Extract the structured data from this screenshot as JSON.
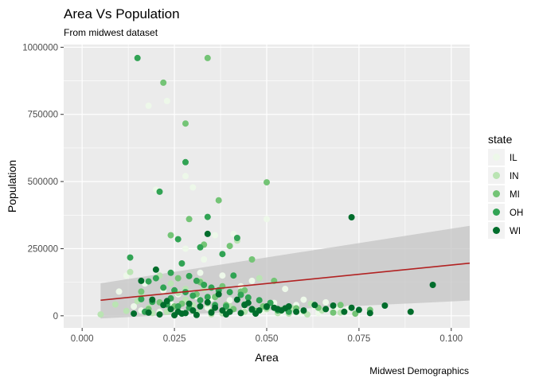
{
  "chart_data": {
    "type": "scatter",
    "title": "Area Vs Population",
    "subtitle": "From midwest dataset",
    "xlabel": "Area",
    "ylabel": "Population",
    "caption": "Midwest Demographics",
    "xlim": [
      -0.005,
      0.105
    ],
    "ylim": [
      -45000,
      1010000
    ],
    "x_ticks": [
      0.0,
      0.025,
      0.05,
      0.075,
      0.1
    ],
    "x_tick_labels": [
      "0.000",
      "0.025",
      "0.050",
      "0.075",
      "0.100"
    ],
    "y_ticks": [
      0,
      250000,
      500000,
      750000,
      1000000
    ],
    "y_tick_labels": [
      "0",
      "250000",
      "500000",
      "750000",
      "1000000"
    ],
    "grid": true,
    "legend": {
      "title": "state",
      "position": "right",
      "entries": [
        "IL",
        "IN",
        "MI",
        "OH",
        "WI"
      ]
    },
    "colors": {
      "IL": "#edf8e9",
      "IN": "#bae4b3",
      "MI": "#74c476",
      "OH": "#31a354",
      "WI": "#006d2c",
      "panel": "#ebebeb",
      "grid_major": "#ffffff",
      "smooth_line": "#b22222",
      "smooth_band": "#c4c4c4"
    },
    "smooth": {
      "method": "lm",
      "x": [
        0.005,
        0.105
      ],
      "y": [
        58000,
        196000
      ],
      "ci_lower": [
        -10000,
        57000
      ],
      "ci_upper": [
        121000,
        335000
      ]
    },
    "series": [
      {
        "name": "IL",
        "points": [
          [
            0.018,
            782000
          ],
          [
            0.023,
            800000
          ],
          [
            0.028,
            520000
          ],
          [
            0.03,
            478000
          ],
          [
            0.02,
            470000
          ],
          [
            0.036,
            300000
          ],
          [
            0.041,
            305000
          ],
          [
            0.05,
            360000
          ],
          [
            0.012,
            150000
          ],
          [
            0.017,
            120000
          ],
          [
            0.022,
            95000
          ],
          [
            0.026,
            80000
          ],
          [
            0.031,
            72000
          ],
          [
            0.035,
            64000
          ],
          [
            0.04,
            58000
          ],
          [
            0.045,
            52000
          ],
          [
            0.052,
            48000
          ],
          [
            0.058,
            40000
          ],
          [
            0.063,
            35000
          ],
          [
            0.069,
            30000
          ],
          [
            0.072,
            26000
          ],
          [
            0.028,
            250000
          ],
          [
            0.033,
            210000
          ],
          [
            0.019,
            60000
          ],
          [
            0.024,
            45000
          ],
          [
            0.029,
            38000
          ],
          [
            0.034,
            30000
          ],
          [
            0.039,
            25000
          ],
          [
            0.044,
            20000
          ],
          [
            0.049,
            17000
          ],
          [
            0.054,
            14000
          ],
          [
            0.059,
            12000
          ],
          [
            0.064,
            10000
          ],
          [
            0.014,
            35000
          ],
          [
            0.016,
            20000
          ],
          [
            0.021,
            15000
          ],
          [
            0.027,
            12000
          ],
          [
            0.038,
            150000
          ],
          [
            0.046,
            130000
          ],
          [
            0.055,
            100000
          ],
          [
            0.06,
            60000
          ],
          [
            0.066,
            50000
          ],
          [
            0.01,
            90000
          ],
          [
            0.032,
            160000
          ],
          [
            0.043,
            110000
          ]
        ]
      },
      {
        "name": "IN",
        "points": [
          [
            0.005,
            5000
          ],
          [
            0.009,
            42000
          ],
          [
            0.013,
            163000
          ],
          [
            0.016,
            75000
          ],
          [
            0.018,
            30000
          ],
          [
            0.021,
            150000
          ],
          [
            0.024,
            120000
          ],
          [
            0.026,
            85000
          ],
          [
            0.028,
            60000
          ],
          [
            0.03,
            40000
          ],
          [
            0.033,
            100000
          ],
          [
            0.036,
            70000
          ],
          [
            0.04,
            35000
          ],
          [
            0.042,
            280000
          ],
          [
            0.045,
            50000
          ],
          [
            0.047,
            20000
          ],
          [
            0.05,
            25000
          ],
          [
            0.053,
            10000
          ],
          [
            0.019,
            10000
          ],
          [
            0.023,
            15000
          ],
          [
            0.025,
            5000
          ],
          [
            0.027,
            8000
          ],
          [
            0.031,
            12000
          ],
          [
            0.035,
            6000
          ],
          [
            0.038,
            9000
          ],
          [
            0.044,
            15000
          ],
          [
            0.056,
            8000
          ],
          [
            0.061,
            5000
          ],
          [
            0.065,
            20000
          ],
          [
            0.028,
            100000
          ],
          [
            0.032,
            130000
          ],
          [
            0.037,
            90000
          ],
          [
            0.048,
            140000
          ],
          [
            0.012,
            18000
          ],
          [
            0.015,
            55000
          ],
          [
            0.034,
            45000
          ],
          [
            0.039,
            18000
          ],
          [
            0.057,
            28000
          ],
          [
            0.062,
            45000
          ],
          [
            0.07,
            12000
          ]
        ]
      },
      {
        "name": "MI",
        "points": [
          [
            0.022,
            868000
          ],
          [
            0.028,
            716000
          ],
          [
            0.05,
            497000
          ],
          [
            0.034,
            960000
          ],
          [
            0.037,
            430000
          ],
          [
            0.024,
            300000
          ],
          [
            0.029,
            360000
          ],
          [
            0.033,
            265000
          ],
          [
            0.04,
            260000
          ],
          [
            0.046,
            210000
          ],
          [
            0.052,
            130000
          ],
          [
            0.021,
            50000
          ],
          [
            0.025,
            35000
          ],
          [
            0.03,
            20000
          ],
          [
            0.035,
            15000
          ],
          [
            0.041,
            25000
          ],
          [
            0.047,
            18000
          ],
          [
            0.054,
            22000
          ],
          [
            0.06,
            18000
          ],
          [
            0.064,
            30000
          ],
          [
            0.068,
            12000
          ],
          [
            0.074,
            8000
          ],
          [
            0.078,
            22000
          ],
          [
            0.031,
            80000
          ],
          [
            0.036,
            70000
          ],
          [
            0.043,
            90000
          ],
          [
            0.018,
            25000
          ],
          [
            0.027,
            45000
          ],
          [
            0.039,
            40000
          ],
          [
            0.049,
            35000
          ],
          [
            0.058,
            28000
          ],
          [
            0.07,
            40000
          ],
          [
            0.026,
            140000
          ],
          [
            0.032,
            125000
          ],
          [
            0.038,
            110000
          ],
          [
            0.044,
            95000
          ],
          [
            0.016,
            90000
          ]
        ]
      },
      {
        "name": "OH",
        "points": [
          [
            0.015,
            960000
          ],
          [
            0.034,
            368000
          ],
          [
            0.028,
            572000
          ],
          [
            0.021,
            462000
          ],
          [
            0.032,
            255000
          ],
          [
            0.026,
            285000
          ],
          [
            0.013,
            217000
          ],
          [
            0.038,
            230000
          ],
          [
            0.042,
            290000
          ],
          [
            0.024,
            160000
          ],
          [
            0.02,
            140000
          ],
          [
            0.027,
            195000
          ],
          [
            0.029,
            148000
          ],
          [
            0.031,
            130000
          ],
          [
            0.033,
            115000
          ],
          [
            0.035,
            105000
          ],
          [
            0.037,
            95000
          ],
          [
            0.04,
            88000
          ],
          [
            0.043,
            78000
          ],
          [
            0.045,
            68000
          ],
          [
            0.048,
            58000
          ],
          [
            0.051,
            48000
          ],
          [
            0.018,
            128000
          ],
          [
            0.022,
            105000
          ],
          [
            0.025,
            95000
          ],
          [
            0.028,
            88000
          ],
          [
            0.03,
            75000
          ],
          [
            0.016,
            62000
          ],
          [
            0.019,
            52000
          ],
          [
            0.023,
            42000
          ],
          [
            0.026,
            35000
          ],
          [
            0.029,
            30000
          ],
          [
            0.036,
            40000
          ],
          [
            0.039,
            35000
          ],
          [
            0.044,
            42000
          ],
          [
            0.032,
            58000
          ],
          [
            0.017,
            15000
          ],
          [
            0.024,
            65000
          ],
          [
            0.034,
            70000
          ],
          [
            0.046,
            22000
          ],
          [
            0.05,
            32000
          ],
          [
            0.053,
            20000
          ],
          [
            0.056,
            15000
          ],
          [
            0.041,
            150000
          ]
        ]
      },
      {
        "name": "WI",
        "points": [
          [
            0.073,
            367000
          ],
          [
            0.034,
            305000
          ],
          [
            0.02,
            172000
          ],
          [
            0.016,
            130000
          ],
          [
            0.095,
            115000
          ],
          [
            0.019,
            60000
          ],
          [
            0.022,
            40000
          ],
          [
            0.024,
            25000
          ],
          [
            0.026,
            15000
          ],
          [
            0.028,
            10000
          ],
          [
            0.03,
            20000
          ],
          [
            0.032,
            35000
          ],
          [
            0.034,
            50000
          ],
          [
            0.036,
            30000
          ],
          [
            0.038,
            20000
          ],
          [
            0.04,
            15000
          ],
          [
            0.042,
            60000
          ],
          [
            0.044,
            40000
          ],
          [
            0.046,
            25000
          ],
          [
            0.048,
            20000
          ],
          [
            0.05,
            35000
          ],
          [
            0.052,
            30000
          ],
          [
            0.053,
            25000
          ],
          [
            0.054,
            20000
          ],
          [
            0.055,
            28000
          ],
          [
            0.056,
            35000
          ],
          [
            0.058,
            15000
          ],
          [
            0.06,
            20000
          ],
          [
            0.063,
            40000
          ],
          [
            0.066,
            25000
          ],
          [
            0.068,
            38000
          ],
          [
            0.071,
            15000
          ],
          [
            0.073,
            30000
          ],
          [
            0.075,
            22000
          ],
          [
            0.078,
            10000
          ],
          [
            0.082,
            38000
          ],
          [
            0.089,
            15000
          ],
          [
            0.021,
            5000
          ],
          [
            0.025,
            2000
          ],
          [
            0.027,
            8000
          ],
          [
            0.031,
            3000
          ],
          [
            0.035,
            12000
          ],
          [
            0.039,
            5000
          ],
          [
            0.043,
            10000
          ],
          [
            0.047,
            8000
          ],
          [
            0.014,
            8000
          ],
          [
            0.018,
            12000
          ],
          [
            0.023,
            55000
          ],
          [
            0.029,
            45000
          ],
          [
            0.037,
            80000
          ],
          [
            0.045,
            48000
          ]
        ]
      }
    ]
  }
}
